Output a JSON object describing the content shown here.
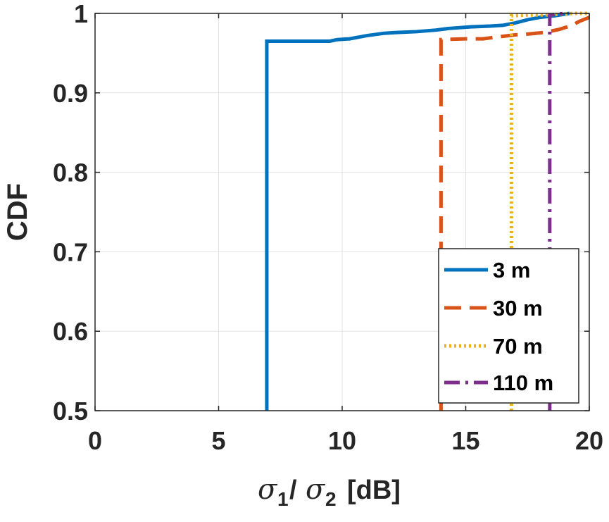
{
  "chart_data": {
    "type": "line",
    "title": "",
    "xlabel": {
      "symbol": "σ",
      "sub1": "1",
      "slash": "/",
      "sub2": "2",
      "unit": "[dB]"
    },
    "ylabel": "CDF",
    "xlim": [
      0,
      20
    ],
    "ylim": [
      0.5,
      1
    ],
    "xticks": [
      0,
      5,
      10,
      15,
      20
    ],
    "xtick_labels": [
      "0",
      "5",
      "10",
      "15",
      "20"
    ],
    "yticks": [
      0.5,
      0.6,
      0.7,
      0.8,
      0.9,
      1
    ],
    "ytick_labels": [
      "0.5",
      "0.6",
      "0.7",
      "0.8",
      "0.9",
      "1"
    ],
    "grid": true,
    "legend_position": "bottom-right",
    "series": [
      {
        "name": "3 m",
        "color": "#0072BD",
        "style": "solid",
        "points": [
          [
            6.95,
            0.5
          ],
          [
            6.95,
            0.965
          ],
          [
            9.5,
            0.965
          ],
          [
            9.8,
            0.967
          ],
          [
            10.3,
            0.968
          ],
          [
            11,
            0.972
          ],
          [
            11.7,
            0.975
          ],
          [
            12.2,
            0.976
          ],
          [
            13,
            0.977
          ],
          [
            13.8,
            0.979
          ],
          [
            14.3,
            0.981
          ],
          [
            15.2,
            0.983
          ],
          [
            16,
            0.984
          ],
          [
            16.5,
            0.985
          ],
          [
            17,
            0.988
          ],
          [
            17.5,
            0.992
          ],
          [
            18,
            0.995
          ],
          [
            18.6,
            0.997
          ],
          [
            19.2,
            1.0
          ]
        ]
      },
      {
        "name": "30 m",
        "color": "#D95319",
        "style": "dashed",
        "points": [
          [
            14.0,
            0.5
          ],
          [
            14.0,
            0.967
          ],
          [
            15.0,
            0.968
          ],
          [
            15.7,
            0.968
          ],
          [
            16.2,
            0.97
          ],
          [
            17,
            0.973
          ],
          [
            17.5,
            0.974
          ],
          [
            18.2,
            0.976
          ],
          [
            18.8,
            0.98
          ],
          [
            19.3,
            0.985
          ],
          [
            19.6,
            0.99
          ],
          [
            20.0,
            0.995
          ]
        ]
      },
      {
        "name": "70 m",
        "color": "#EDB120",
        "style": "dotted",
        "points": [
          [
            16.85,
            0.5
          ],
          [
            16.85,
            0.997
          ],
          [
            17.5,
            0.998
          ],
          [
            18.2,
            0.998
          ],
          [
            18.8,
            0.999
          ],
          [
            19.4,
            1.0
          ],
          [
            20.0,
            1.0
          ]
        ]
      },
      {
        "name": "110 m",
        "color": "#7E2F8E",
        "style": "dashdot",
        "points": [
          [
            18.4,
            0.5
          ],
          [
            18.4,
            0.998
          ],
          [
            18.7,
            0.999
          ],
          [
            19.0,
            1.0
          ]
        ]
      }
    ]
  }
}
